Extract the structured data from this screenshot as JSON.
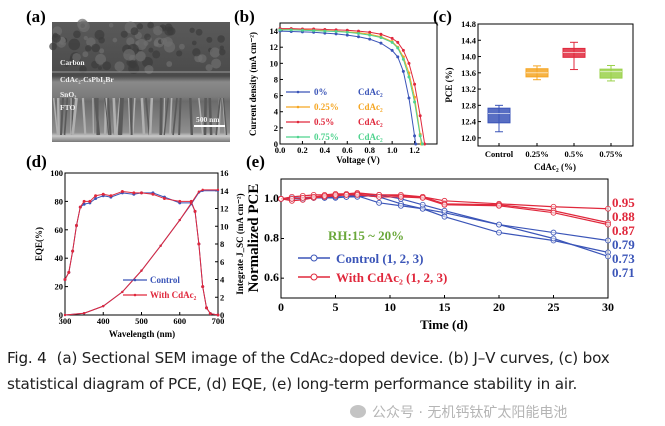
{
  "panels": {
    "a": {
      "label": "(a)",
      "layers": [
        "Carbon",
        "CdAc₂-CsPbI₂Br",
        "SnO₂",
        "FTO"
      ],
      "scale_bar": "500 nm"
    },
    "b": {
      "label": "(b)"
    },
    "c": {
      "label": "(c)"
    },
    "d": {
      "label": "(d)"
    },
    "e": {
      "label": "(e)",
      "annotation": "RH:15 ~ 20%",
      "end_labels_red": [
        "0.95",
        "0.88",
        "0.87"
      ],
      "end_labels_blue": [
        "0.79",
        "0.73",
        "0.71"
      ]
    }
  },
  "colors": {
    "blue": "#3b55b8",
    "orange": "#f5a623",
    "red": "#e0283c",
    "mint": "#4fd38e",
    "lime": "#9ad14a",
    "rh_green": "#6aa83a"
  },
  "chart_data": [
    {
      "id": "b",
      "type": "line",
      "xlabel": "Voltage (V)",
      "ylabel": "Current density (mA cm⁻²)",
      "xlim": [
        0,
        1.4
      ],
      "ylim": [
        0,
        15
      ],
      "xticks": [
        "0.0",
        "0.2",
        "0.4",
        "0.6",
        "0.8",
        "1.0",
        "1.2"
      ],
      "yticks": [
        "0",
        "2",
        "4",
        "6",
        "8",
        "10",
        "12",
        "14"
      ],
      "x": [
        0,
        0.1,
        0.2,
        0.3,
        0.4,
        0.5,
        0.6,
        0.7,
        0.8,
        0.9,
        1.0,
        1.05,
        1.1,
        1.15,
        1.2,
        1.25
      ],
      "series": [
        {
          "name": "0%",
          "suffix": "CdAc₂",
          "color": "#3b55b8",
          "x": [
            0,
            0.1,
            0.2,
            0.3,
            0.4,
            0.5,
            0.6,
            0.7,
            0.8,
            0.9,
            1.0,
            1.05,
            1.1,
            1.15,
            1.2,
            1.21
          ],
          "values": [
            14.0,
            13.95,
            13.9,
            13.85,
            13.75,
            13.65,
            13.5,
            13.3,
            13.0,
            12.5,
            11.6,
            10.8,
            9.0,
            5.7,
            1.0,
            0
          ]
        },
        {
          "name": "0.25%",
          "suffix": "CdAc₂",
          "color": "#f5a623",
          "x": [
            0,
            0.1,
            0.2,
            0.3,
            0.4,
            0.5,
            0.6,
            0.7,
            0.8,
            0.9,
            1.0,
            1.05,
            1.1,
            1.15,
            1.2,
            1.25,
            1.26
          ],
          "values": [
            14.2,
            14.2,
            14.15,
            14.1,
            14.05,
            14.0,
            13.9,
            13.8,
            13.6,
            13.3,
            12.7,
            12.0,
            10.8,
            8.8,
            5.8,
            1.2,
            0
          ]
        },
        {
          "name": "0.5%",
          "suffix": "CdAc₂",
          "color": "#e0283c",
          "x": [
            0,
            0.1,
            0.2,
            0.3,
            0.4,
            0.5,
            0.6,
            0.7,
            0.8,
            0.9,
            1.0,
            1.05,
            1.1,
            1.15,
            1.2,
            1.25,
            1.29
          ],
          "values": [
            14.3,
            14.3,
            14.25,
            14.25,
            14.2,
            14.15,
            14.1,
            14.0,
            13.85,
            13.6,
            13.1,
            12.6,
            11.6,
            10.0,
            7.4,
            3.5,
            0
          ]
        },
        {
          "name": "0.75%",
          "suffix": "CdAc₂",
          "color": "#4fd38e",
          "x": [
            0,
            0.1,
            0.2,
            0.3,
            0.4,
            0.5,
            0.6,
            0.7,
            0.8,
            0.9,
            1.0,
            1.05,
            1.1,
            1.15,
            1.2,
            1.25,
            1.27
          ],
          "values": [
            14.15,
            14.15,
            14.1,
            14.05,
            14.0,
            13.95,
            13.85,
            13.7,
            13.5,
            13.2,
            12.6,
            11.9,
            10.5,
            8.3,
            5.2,
            1.0,
            0
          ]
        }
      ],
      "legend": "lower-left"
    },
    {
      "id": "c",
      "type": "box",
      "xlabel": "CdAc₂ (%)",
      "ylabel": "PCE (%)",
      "ylim": [
        11.8,
        14.8
      ],
      "yticks": [
        "12.0",
        "12.4",
        "12.8",
        "13.2",
        "13.6",
        "14.0",
        "14.4",
        "14.8"
      ],
      "categories": [
        "Control",
        "0.25%",
        "0.5%",
        "0.75%"
      ],
      "boxes": [
        {
          "min": 12.15,
          "q1": 12.37,
          "median": 12.6,
          "q3": 12.73,
          "max": 12.8,
          "color": "#3b55b8"
        },
        {
          "min": 13.43,
          "q1": 13.5,
          "median": 13.6,
          "q3": 13.7,
          "max": 13.77,
          "color": "#f5a623"
        },
        {
          "min": 13.68,
          "q1": 13.98,
          "median": 14.1,
          "q3": 14.2,
          "max": 14.35,
          "color": "#e0283c"
        },
        {
          "min": 13.4,
          "q1": 13.47,
          "median": 13.63,
          "q3": 13.69,
          "max": 13.78,
          "color": "#9ad14a"
        }
      ]
    },
    {
      "id": "d",
      "type": "line",
      "xlabel": "Wavelength (nm)",
      "ylabel": "EQE(%)",
      "ylabel_right": "Integrate J_SC (mA cm⁻²)",
      "xlim": [
        300,
        700
      ],
      "ylim": [
        0,
        100
      ],
      "ylim_right": [
        0,
        16
      ],
      "xticks": [
        "300",
        "400",
        "500",
        "600",
        "700"
      ],
      "yticks": [
        "0",
        "20",
        "40",
        "60",
        "80",
        "100"
      ],
      "yticks_right": [
        "0",
        "2",
        "4",
        "6",
        "8",
        "10",
        "12",
        "14",
        "16"
      ],
      "series": [
        {
          "name": "Control",
          "color": "#3b55b8",
          "axis": "left",
          "x": [
            300,
            310,
            320,
            330,
            340,
            350,
            365,
            380,
            400,
            420,
            450,
            480,
            500,
            530,
            560,
            600,
            630,
            640,
            650,
            660,
            670,
            680,
            700
          ],
          "values": [
            25,
            30,
            45,
            63,
            76,
            78,
            79,
            82,
            84,
            83,
            86,
            85,
            86,
            86,
            83,
            79,
            79,
            73,
            50,
            20,
            5,
            1,
            0
          ]
        },
        {
          "name": "With CdAc₂",
          "color": "#e0283c",
          "axis": "left",
          "x": [
            300,
            310,
            320,
            330,
            340,
            350,
            365,
            380,
            400,
            420,
            450,
            480,
            500,
            530,
            560,
            600,
            630,
            640,
            650,
            660,
            670,
            680,
            700
          ],
          "values": [
            25,
            30,
            45,
            63,
            76,
            80,
            80,
            84,
            85,
            84,
            87,
            86,
            86,
            85,
            82,
            80,
            80,
            73,
            50,
            20,
            5,
            1,
            0
          ]
        },
        {
          "name": "Control Jsc",
          "color": "#3b55b8",
          "axis": "right",
          "x": [
            300,
            350,
            400,
            450,
            500,
            550,
            600,
            630,
            650,
            660,
            700
          ],
          "values": [
            0,
            0.2,
            1.0,
            2.6,
            5.0,
            7.8,
            10.7,
            12.5,
            13.8,
            14.0,
            14.0
          ]
        },
        {
          "name": "With CdAc₂ Jsc",
          "color": "#e0283c",
          "axis": "right",
          "x": [
            300,
            350,
            400,
            450,
            500,
            550,
            600,
            630,
            650,
            660,
            700
          ],
          "values": [
            0,
            0.2,
            1.0,
            2.6,
            5.0,
            7.8,
            10.7,
            12.6,
            13.9,
            14.1,
            14.1
          ]
        }
      ],
      "legend_labels": [
        "Control",
        "With CdAc₂"
      ],
      "legend": "bottom-center"
    },
    {
      "id": "e",
      "type": "line",
      "xlabel": "Time (d)",
      "ylabel": "Normalized PCE",
      "xlim": [
        0,
        30
      ],
      "ylim": [
        0.5,
        1.1
      ],
      "xticks": [
        "0",
        "5",
        "10",
        "15",
        "20",
        "25",
        "30"
      ],
      "yticks": [
        "0.6",
        "0.8",
        "1.0"
      ],
      "x": [
        0,
        1,
        2,
        3,
        4,
        5,
        6,
        7,
        9,
        11,
        13,
        15,
        20,
        25,
        30
      ],
      "series": [
        {
          "group": "Control (1, 2, 3)",
          "color": "#3b55b8",
          "values": [
            1,
            1.0,
            1.0,
            1.005,
            1.005,
            1.01,
            1.01,
            1.02,
            1.01,
            0.975,
            0.95,
            0.93,
            0.87,
            0.83,
            0.79
          ]
        },
        {
          "group": "Control (1, 2, 3)",
          "color": "#3b55b8",
          "values": [
            1,
            1.0,
            1.005,
            1.005,
            1.005,
            1.005,
            1.01,
            1.015,
            0.98,
            0.965,
            0.95,
            0.91,
            0.83,
            0.79,
            0.73
          ]
        },
        {
          "group": "Control (1, 2, 3)",
          "color": "#3b55b8",
          "values": [
            1,
            1.005,
            1.005,
            1.01,
            1.01,
            1.01,
            1.01,
            1.01,
            1.02,
            1.0,
            0.97,
            0.94,
            0.87,
            0.8,
            0.71
          ]
        },
        {
          "group": "With CdAc₂ (1, 2, 3)",
          "color": "#e0283c",
          "values": [
            1,
            1.01,
            1.015,
            1.02,
            1.02,
            1.025,
            1.025,
            1.03,
            1.02,
            1.015,
            1.01,
            0.99,
            0.975,
            0.96,
            0.95
          ]
        },
        {
          "group": "With CdAc₂ (1, 2, 3)",
          "color": "#e0283c",
          "values": [
            1,
            0.99,
            0.995,
            1.005,
            1.01,
            1.015,
            1.02,
            1.025,
            1.02,
            1.02,
            1.01,
            0.975,
            0.97,
            0.94,
            0.88
          ]
        },
        {
          "group": "With CdAc₂ (1, 2, 3)",
          "color": "#e0283c",
          "values": [
            1,
            1.0,
            1.005,
            1.01,
            1.015,
            1.02,
            1.02,
            1.02,
            1.01,
            1.01,
            1.005,
            0.97,
            0.965,
            0.93,
            0.87
          ]
        }
      ],
      "legend_labels": [
        "Control (1, 2, 3)",
        "With CdAc₂ (1, 2, 3)"
      ],
      "legend": "lower-left"
    }
  ],
  "caption": {
    "fig_label": "Fig. 4",
    "text": "(a) Sectional SEM image of the CdAc₂-doped device. (b) J–V curves, (c) box statistical diagram of PCE, (d) EQE, (e) long-term performance stability in air."
  },
  "watermark": "公众号 · 无机钙钛矿太阳能电池"
}
